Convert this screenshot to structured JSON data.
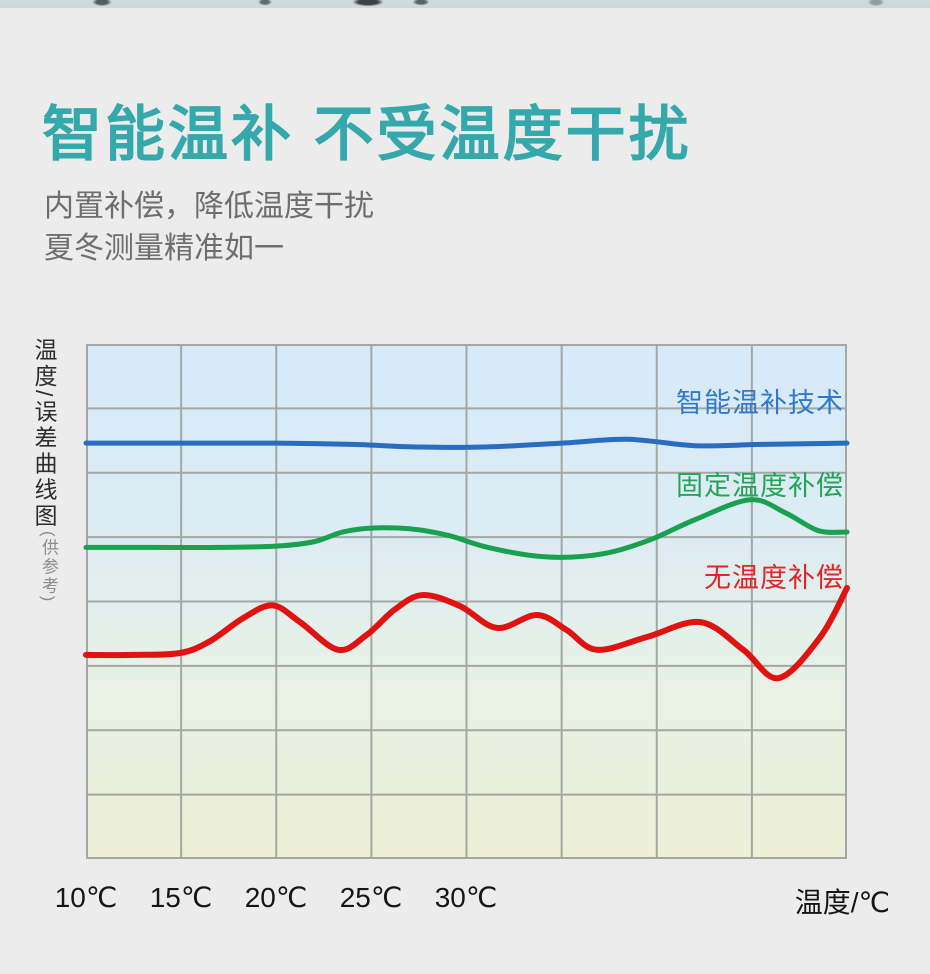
{
  "page": {
    "background": "#ececec"
  },
  "top_strip": {
    "base_color": "#cdd9dc"
  },
  "header": {
    "title": "智能温补 不受温度干扰",
    "title_color": "#35a8ac",
    "subtitle_line1": "内置补偿，降低温度干扰",
    "subtitle_line2": "夏冬测量精准如一",
    "subtitle_color": "#6e6e6e"
  },
  "chart": {
    "y_axis_label_main": "温度/误差曲线图",
    "y_axis_label_note": "(供参考)",
    "y_axis_label_color": "#2d2d2d",
    "y_axis_note_color": "#8d8d8d",
    "x_ticks": [
      "10℃",
      "15℃",
      "20℃",
      "25℃",
      "30℃"
    ],
    "x_axis_unit": "温度/℃",
    "tick_color": "#161616",
    "legend": [
      {
        "label": "智能温补技术",
        "color": "#3079ce"
      },
      {
        "label": "固定温度补偿",
        "color": "#24a457"
      },
      {
        "label": "无温度补偿",
        "color": "#e42525"
      }
    ]
  },
  "chart_data": {
    "type": "line",
    "title": "温度/误差曲线图 (供参考)",
    "xlabel": "温度/℃",
    "ylabel": "温度/误差",
    "x_tick_labels": [
      "10℃",
      "15℃",
      "20℃",
      "25℃",
      "30℃"
    ],
    "x_tick_grid_positions": [
      0,
      1,
      2,
      3,
      4
    ],
    "x_range": [
      0,
      8
    ],
    "y_range": [
      0,
      8
    ],
    "grid": {
      "cols": 8,
      "rows": 8,
      "color": "#a3a7a5",
      "stroke_width": 2
    },
    "plot_bg_gradient": [
      "#d6eafa",
      "#ddecf3",
      "#e6f1e7",
      "#eef0d6"
    ],
    "legend_position": "right-inside",
    "series": [
      {
        "name": "智能温补技术",
        "color": "#2a6cc0",
        "stroke_width": 5,
        "points": [
          [
            0,
            6.46
          ],
          [
            1,
            6.46
          ],
          [
            2,
            6.46
          ],
          [
            2.8,
            6.44
          ],
          [
            3.5,
            6.4
          ],
          [
            4.2,
            6.4
          ],
          [
            5,
            6.46
          ],
          [
            5.7,
            6.52
          ],
          [
            6.4,
            6.42
          ],
          [
            7.1,
            6.44
          ],
          [
            8,
            6.46
          ]
        ]
      },
      {
        "name": "固定温度补偿",
        "color": "#19a14f",
        "stroke_width": 5,
        "points": [
          [
            0,
            4.84
          ],
          [
            0.7,
            4.84
          ],
          [
            1.4,
            4.84
          ],
          [
            2,
            4.86
          ],
          [
            2.4,
            4.93
          ],
          [
            2.7,
            5.08
          ],
          [
            3.0,
            5.14
          ],
          [
            3.4,
            5.13
          ],
          [
            3.8,
            5.03
          ],
          [
            4.2,
            4.85
          ],
          [
            4.7,
            4.71
          ],
          [
            5.1,
            4.69
          ],
          [
            5.5,
            4.76
          ],
          [
            5.95,
            4.97
          ],
          [
            6.4,
            5.27
          ],
          [
            6.98,
            5.58
          ],
          [
            7.35,
            5.38
          ],
          [
            7.7,
            5.1
          ],
          [
            8,
            5.08
          ]
        ]
      },
      {
        "name": "无温度补偿",
        "color": "#e01212",
        "stroke_width": 6,
        "points": [
          [
            0,
            3.17
          ],
          [
            0.5,
            3.17
          ],
          [
            0.99,
            3.2
          ],
          [
            1.3,
            3.38
          ],
          [
            1.65,
            3.74
          ],
          [
            1.96,
            3.94
          ],
          [
            2.25,
            3.68
          ],
          [
            2.65,
            3.25
          ],
          [
            2.95,
            3.48
          ],
          [
            3.25,
            3.88
          ],
          [
            3.54,
            4.1
          ],
          [
            3.93,
            3.93
          ],
          [
            4.32,
            3.59
          ],
          [
            4.74,
            3.79
          ],
          [
            5.05,
            3.56
          ],
          [
            5.37,
            3.25
          ],
          [
            5.9,
            3.45
          ],
          [
            6.46,
            3.68
          ],
          [
            6.91,
            3.25
          ],
          [
            7.28,
            2.81
          ],
          [
            7.72,
            3.45
          ],
          [
            8,
            4.21
          ]
        ]
      }
    ]
  }
}
